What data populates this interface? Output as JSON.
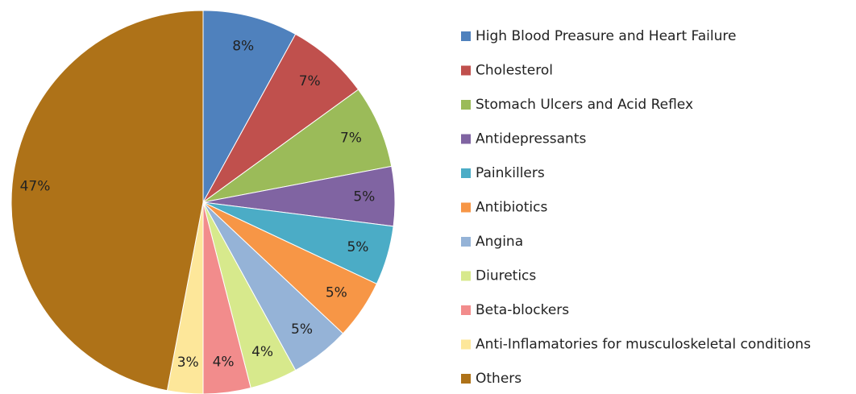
{
  "chart_data": {
    "type": "pie",
    "categories": [
      "High Blood Preasure and Heart Failure",
      "Cholesterol",
      "Stomach Ulcers and Acid Reflex",
      "Antidepressants",
      "Painkillers",
      "Antibiotics",
      "Angina",
      "Diuretics",
      "Beta-blockers",
      "Anti-Inflamatories for musculoskeletal conditions",
      "Others"
    ],
    "values": [
      8,
      7,
      7,
      5,
      5,
      5,
      5,
      4,
      4,
      3,
      47
    ],
    "value_labels": [
      "8%",
      "7%",
      "7%",
      "5%",
      "5%",
      "5%",
      "5%",
      "4%",
      "4%",
      "3%",
      "47%"
    ],
    "colors": [
      "#4f81bd",
      "#c0504d",
      "#9bbb59",
      "#8064a2",
      "#4bacc6",
      "#f79646",
      "#95b3d7",
      "#d7e98c",
      "#f28c8c",
      "#fde79a",
      "#ae7218"
    ],
    "legend": "right"
  }
}
